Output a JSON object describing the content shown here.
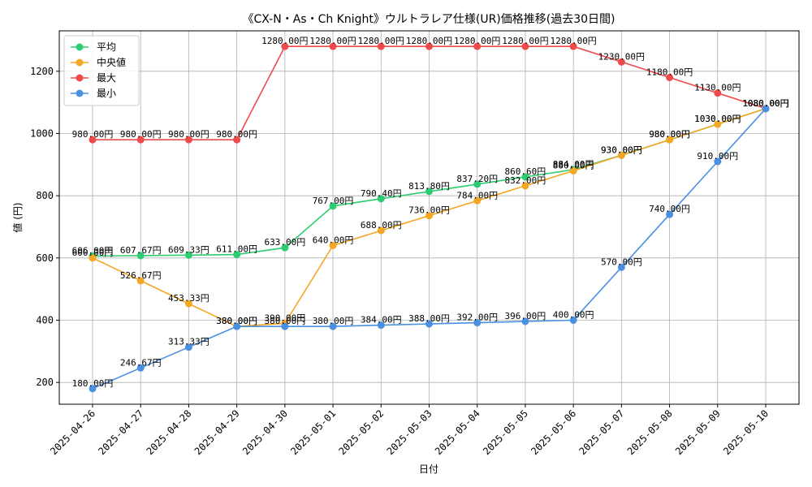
{
  "chart_data": {
    "type": "line",
    "title": "《CX-N・As・Ch Knight》ウルトラレア仕様(UR)価格推移(過去30日間)",
    "xlabel": "日付",
    "ylabel": "値 (円)",
    "categories": [
      "2025-04-26",
      "2025-04-27",
      "2025-04-28",
      "2025-04-29",
      "2025-04-30",
      "2025-05-01",
      "2025-05-02",
      "2025-05-03",
      "2025-05-04",
      "2025-05-05",
      "2025-05-06",
      "2025-05-07",
      "2025-05-08",
      "2025-05-09",
      "2025-05-10"
    ],
    "ylim": [
      130,
      1330
    ],
    "yticks": [
      200,
      400,
      600,
      800,
      1000,
      1200
    ],
    "grid": true,
    "legend_position": "top-left",
    "label_suffix": "円",
    "series": [
      {
        "name": "平均",
        "color": "#2ecc71",
        "values": [
          606.0,
          607.67,
          609.33,
          611.0,
          633.0,
          767.0,
          790.4,
          813.8,
          837.2,
          860.6,
          884.0,
          930.0,
          980.0,
          1030.0,
          1080.0
        ]
      },
      {
        "name": "中央値",
        "color": "#f5a623",
        "values": [
          600.0,
          526.67,
          453.33,
          380.0,
          390.0,
          640.0,
          688.0,
          736.0,
          784.0,
          832.0,
          880.0,
          930.0,
          980.0,
          1030.0,
          1080.0
        ]
      },
      {
        "name": "最大",
        "color": "#ef4b4b",
        "values": [
          980.0,
          980.0,
          980.0,
          980.0,
          1280.0,
          1280.0,
          1280.0,
          1280.0,
          1280.0,
          1280.0,
          1280.0,
          1230.0,
          1180.0,
          1130.0,
          1080.0
        ]
      },
      {
        "name": "最小",
        "color": "#4a90e2",
        "values": [
          180.0,
          246.67,
          313.33,
          380.0,
          380.0,
          380.0,
          384.0,
          388.0,
          392.0,
          396.0,
          400.0,
          570.0,
          740.0,
          910.0,
          1080.0
        ]
      }
    ]
  }
}
